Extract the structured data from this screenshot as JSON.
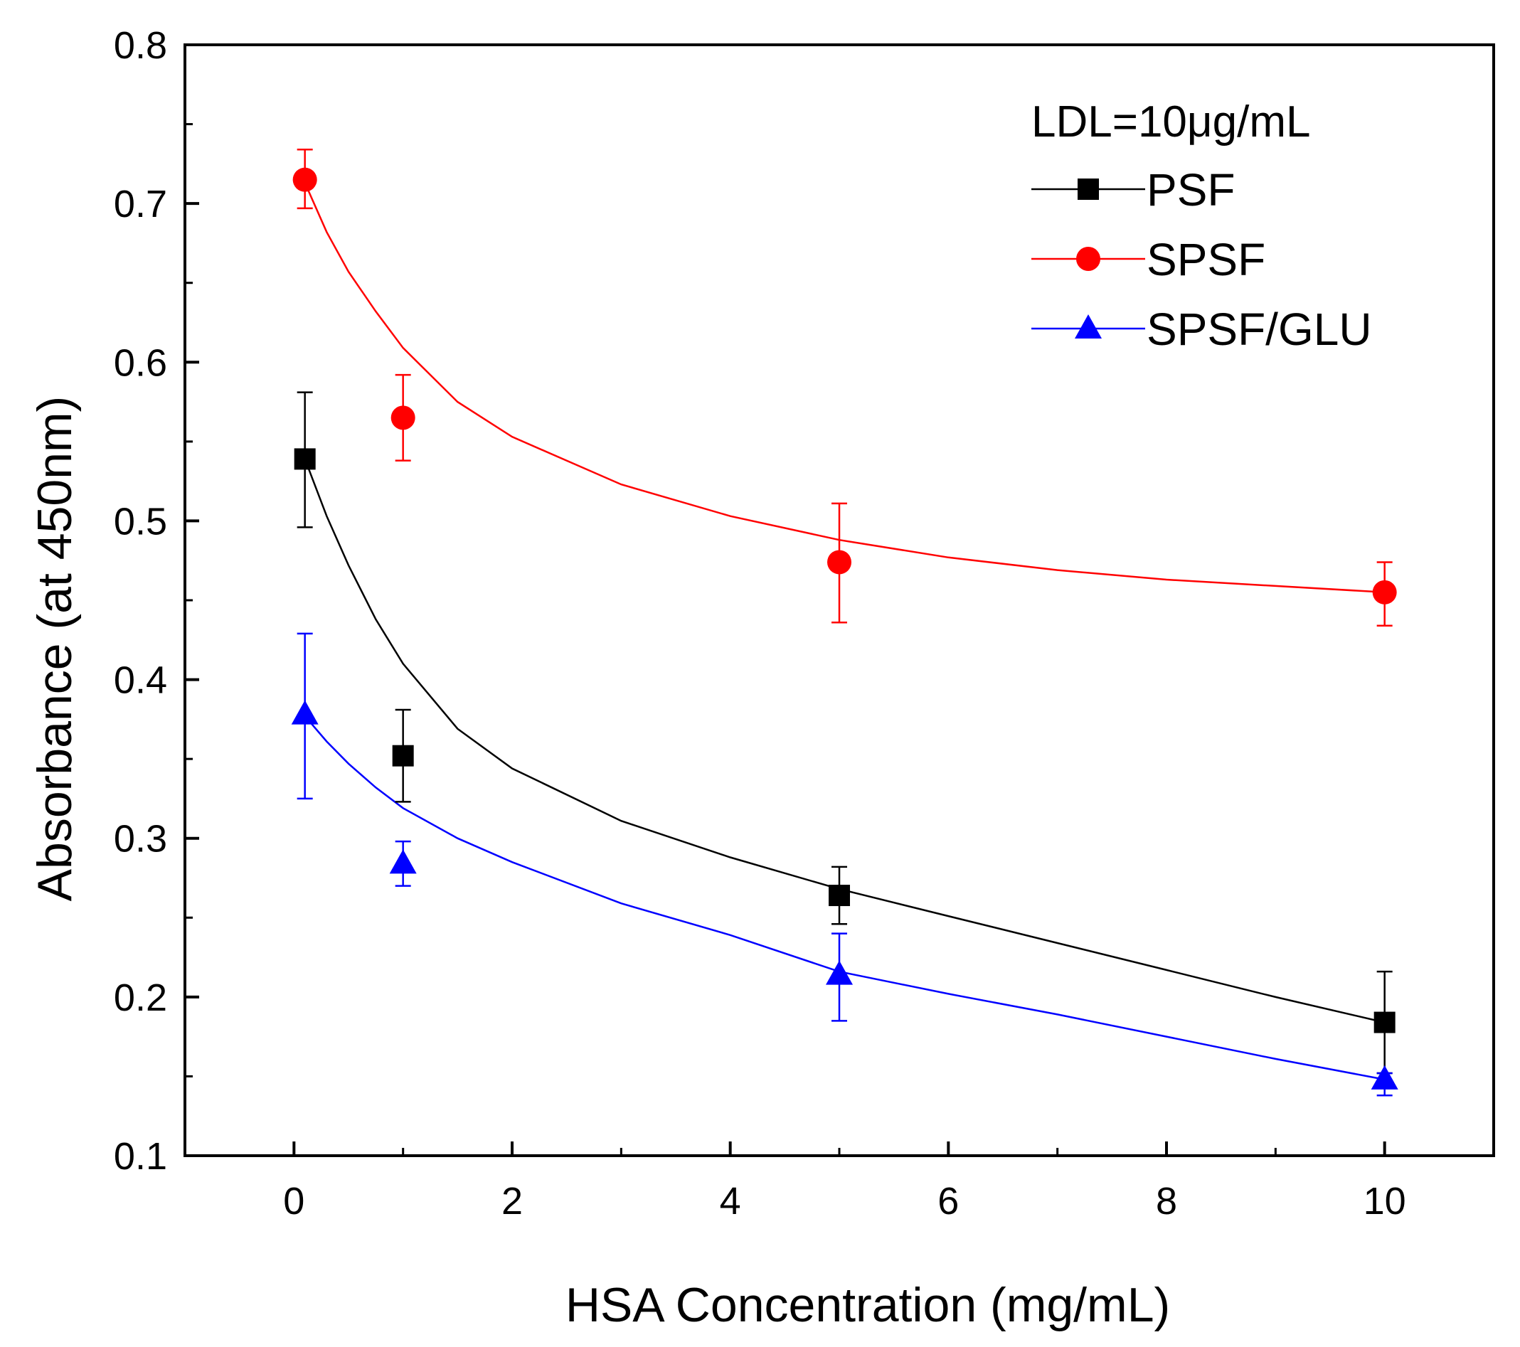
{
  "chart_data": {
    "type": "scatter",
    "title": "",
    "xlabel": "HSA Concentration (mg/mL)",
    "ylabel": "Absorbance (at 450nm)",
    "xlim": [
      -1,
      11
    ],
    "ylim": [
      0.1,
      0.8
    ],
    "x_ticks": [
      0,
      2,
      4,
      6,
      8,
      10
    ],
    "x_tick_labels": [
      "0",
      "2",
      "4",
      "6",
      "8",
      "10"
    ],
    "x_minor_ticks": [
      1,
      3,
      5,
      7,
      9
    ],
    "y_ticks": [
      0.1,
      0.2,
      0.3,
      0.4,
      0.5,
      0.6,
      0.7,
      0.8
    ],
    "y_tick_labels": [
      "0.1",
      "0.2",
      "0.3",
      "0.4",
      "0.5",
      "0.6",
      "0.7",
      "0.8"
    ],
    "y_minor_ticks": [
      0.15,
      0.25,
      0.35,
      0.45,
      0.55,
      0.65,
      0.75
    ],
    "grid": false,
    "legend": {
      "title": "LDL=10μg/mL",
      "position": "top-right"
    },
    "series": [
      {
        "name": "PSF",
        "color": "#000000",
        "marker": "square",
        "x": [
          0.1,
          1,
          5,
          10
        ],
        "y": [
          0.539,
          0.352,
          0.264,
          0.184
        ],
        "err_upper": [
          0.581,
          0.381,
          0.282,
          0.216
        ],
        "err_lower": [
          0.496,
          0.323,
          0.246,
          0.152
        ],
        "fit": [
          [
            0.1,
            0.539
          ],
          [
            0.3,
            0.503
          ],
          [
            0.5,
            0.472
          ],
          [
            0.75,
            0.438
          ],
          [
            1,
            0.41
          ],
          [
            1.5,
            0.369
          ],
          [
            2,
            0.344
          ],
          [
            3,
            0.311
          ],
          [
            4,
            0.288
          ],
          [
            5,
            0.268
          ],
          [
            6,
            0.251
          ],
          [
            7,
            0.234
          ],
          [
            8,
            0.217
          ],
          [
            9,
            0.2
          ],
          [
            10,
            0.184
          ]
        ]
      },
      {
        "name": "SPSF",
        "color": "#ff0000",
        "marker": "circle",
        "x": [
          0.1,
          1,
          5,
          10
        ],
        "y": [
          0.715,
          0.565,
          0.474,
          0.455
        ],
        "err_upper": [
          0.734,
          0.592,
          0.511,
          0.474
        ],
        "err_lower": [
          0.697,
          0.538,
          0.436,
          0.434
        ],
        "fit": [
          [
            0.1,
            0.713
          ],
          [
            0.3,
            0.682
          ],
          [
            0.5,
            0.657
          ],
          [
            0.75,
            0.632
          ],
          [
            1,
            0.609
          ],
          [
            1.5,
            0.575
          ],
          [
            2,
            0.553
          ],
          [
            3,
            0.523
          ],
          [
            4,
            0.503
          ],
          [
            5,
            0.488
          ],
          [
            6,
            0.477
          ],
          [
            7,
            0.469
          ],
          [
            8,
            0.463
          ],
          [
            9,
            0.459
          ],
          [
            10,
            0.455
          ]
        ]
      },
      {
        "name": "SPSF/GLU",
        "color": "#0000ff",
        "marker": "triangle",
        "x": [
          0.1,
          1,
          5,
          10
        ],
        "y": [
          0.378,
          0.284,
          0.214,
          0.148
        ],
        "err_upper": [
          0.429,
          0.298,
          0.24,
          0.152
        ],
        "err_lower": [
          0.325,
          0.27,
          0.185,
          0.138
        ],
        "fit": [
          [
            0.1,
            0.377
          ],
          [
            0.3,
            0.361
          ],
          [
            0.5,
            0.347
          ],
          [
            0.75,
            0.332
          ],
          [
            1,
            0.319
          ],
          [
            1.5,
            0.3
          ],
          [
            2,
            0.285
          ],
          [
            3,
            0.259
          ],
          [
            4,
            0.239
          ],
          [
            5,
            0.216
          ],
          [
            6,
            0.202
          ],
          [
            7,
            0.189
          ],
          [
            8,
            0.175
          ],
          [
            9,
            0.161
          ],
          [
            10,
            0.148
          ]
        ]
      }
    ]
  }
}
